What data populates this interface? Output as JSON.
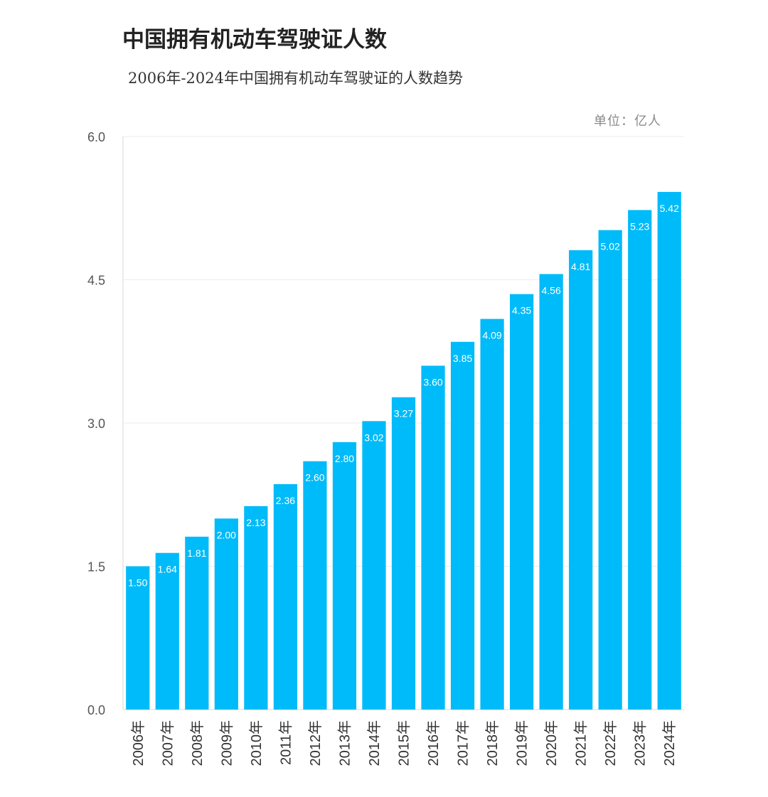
{
  "chart_data": {
    "type": "bar",
    "title": "中国拥有机动车驾驶证人数",
    "subtitle": "2006年-2024年中国拥有机动车驾驶证的人数趋势",
    "unit_label": "单位：亿人",
    "categories": [
      "2006年",
      "2007年",
      "2008年",
      "2009年",
      "2010年",
      "2011年",
      "2012年",
      "2013年",
      "2014年",
      "2015年",
      "2016年",
      "2017年",
      "2018年",
      "2019年",
      "2020年",
      "2021年",
      "2022年",
      "2023年",
      "2024年"
    ],
    "values": [
      1.5,
      1.64,
      1.81,
      2.0,
      2.13,
      2.36,
      2.6,
      2.8,
      3.02,
      3.27,
      3.6,
      3.85,
      4.09,
      4.35,
      4.56,
      4.81,
      5.02,
      5.23,
      5.42
    ],
    "value_labels": [
      "1.50",
      "1.64",
      "1.81",
      "2.00",
      "2.13",
      "2.36",
      "2.60",
      "2.80",
      "3.02",
      "3.27",
      "3.60",
      "3.85",
      "4.09",
      "4.35",
      "4.56",
      "4.81",
      "5.02",
      "5.23",
      "5.42"
    ],
    "yticks": [
      0.0,
      1.5,
      3.0,
      4.5,
      6.0
    ],
    "ytick_labels": [
      "0.0",
      "1.5",
      "3.0",
      "4.5",
      "6.0"
    ],
    "ylim": [
      0,
      6.0
    ],
    "xlabel": "",
    "ylabel": "",
    "grid": true,
    "bar_color": "#00BBF9",
    "grid_color": "#ececec"
  }
}
